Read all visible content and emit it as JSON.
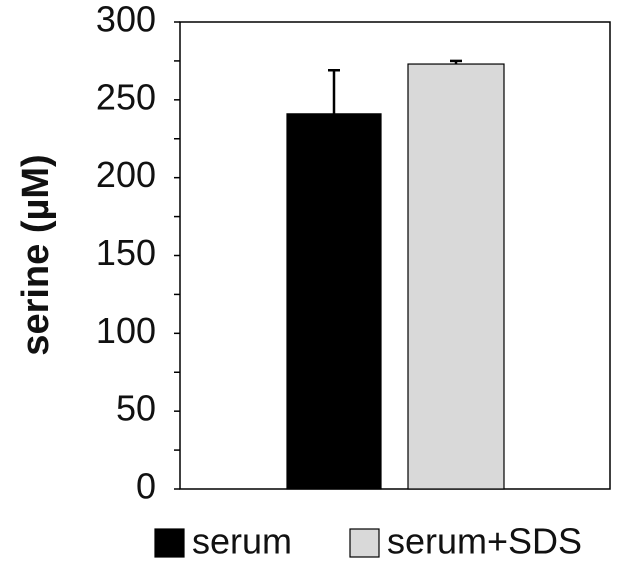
{
  "chart_data": {
    "type": "bar",
    "y_label": "serine (µM)",
    "categories": [
      null
    ],
    "series": [
      {
        "name": "serum",
        "color": "#000000",
        "values": [
          241
        ],
        "errors": [
          28
        ]
      },
      {
        "name": "serum+SDS",
        "color": "#d9d9d9",
        "values": [
          273
        ],
        "errors": [
          2
        ]
      }
    ],
    "ylim": [
      0,
      300
    ],
    "yticks": [
      0,
      50,
      100,
      150,
      200,
      250,
      300
    ],
    "legend": "bottom"
  }
}
